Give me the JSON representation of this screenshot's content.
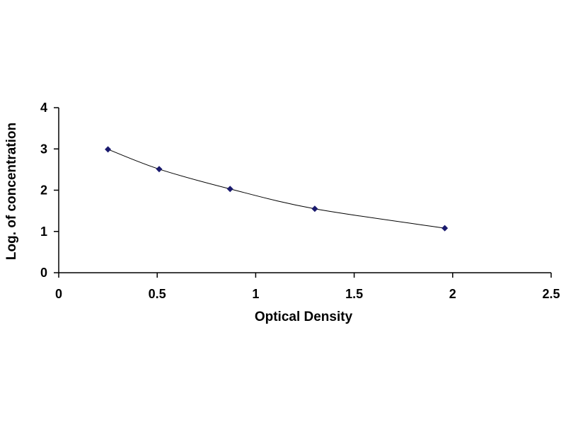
{
  "chart_data": {
    "type": "scatter",
    "xlabel": "Optical Density",
    "ylabel": "Log. of concentration",
    "xlim": [
      0,
      2.5
    ],
    "ylim": [
      0,
      4
    ],
    "xticks": [
      "0",
      "0.5",
      "1",
      "1.5",
      "2",
      "2.5"
    ],
    "yticks": [
      "0",
      "1",
      "2",
      "3",
      "4"
    ],
    "grid": false,
    "legend": "none",
    "trendline": "smooth curve through points",
    "series": [
      {
        "x": [
          0.25,
          0.51,
          0.87,
          1.3,
          1.96
        ],
        "y": [
          2.99,
          2.51,
          2.03,
          1.55,
          1.08
        ]
      }
    ],
    "colors": {
      "marker": "#1a1a6e",
      "line": "#000000",
      "axis": "#000000"
    }
  }
}
